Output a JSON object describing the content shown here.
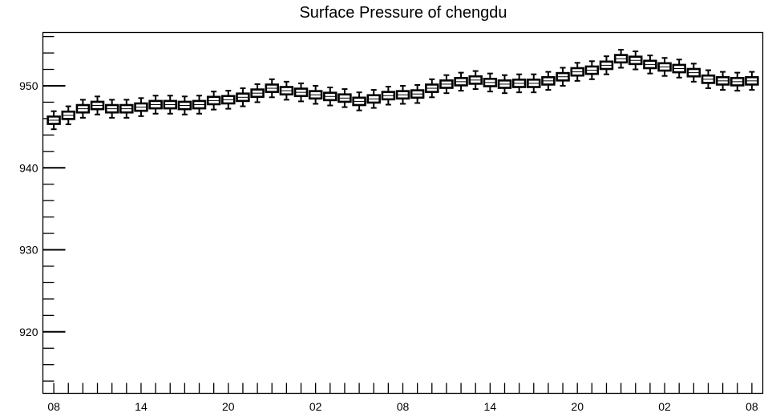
{
  "chart_data": {
    "type": "box",
    "title": "Surface Pressure of chengdu",
    "xlabel": "",
    "ylabel": "",
    "ylim": [
      912.5,
      956.5
    ],
    "yticks": [
      920,
      930,
      940,
      950
    ],
    "x_tick_labels": [
      "08",
      "14",
      "20",
      "02",
      "08",
      "14",
      "20",
      "02",
      "08"
    ],
    "x_step_hours": 1,
    "grid": false,
    "median": [
      945.8,
      946.4,
      947.2,
      947.6,
      947.2,
      947.2,
      947.4,
      947.7,
      947.7,
      947.6,
      947.7,
      948.2,
      948.3,
      948.6,
      949.1,
      949.7,
      949.4,
      949.2,
      948.9,
      948.7,
      948.5,
      948.1,
      948.4,
      948.8,
      948.9,
      949.0,
      949.7,
      950.2,
      950.5,
      950.7,
      950.4,
      950.2,
      950.3,
      950.3,
      950.6,
      951.1,
      951.7,
      951.9,
      952.5,
      953.3,
      953.1,
      952.6,
      952.3,
      952.1,
      951.6,
      950.8,
      950.6,
      950.5,
      950.6
    ],
    "box_half_range": 0.45,
    "whisker_half_range": 1.1
  }
}
